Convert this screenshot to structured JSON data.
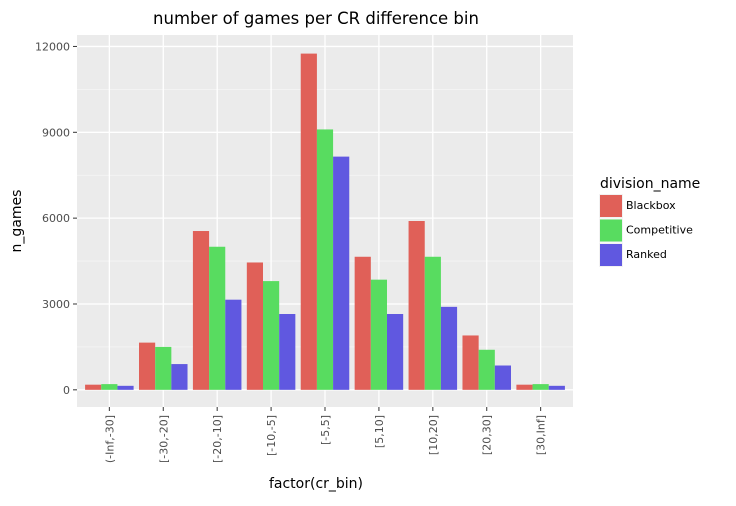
{
  "chart_data": {
    "type": "bar",
    "title": "number of games per CR difference bin",
    "xlabel": "factor(cr_bin)",
    "ylabel": "n_games",
    "categories": [
      "(-Inf,-30]",
      "[-30,-20]",
      "[-20,-10]",
      "[-10,-5]",
      "[-5,5]",
      "[5,10]",
      "[10,20]",
      "[20,30]",
      "[30,Inf]"
    ],
    "ylim": [
      -600,
      12400
    ],
    "yticks": [
      0,
      3000,
      6000,
      9000,
      12000
    ],
    "ytick_labels": [
      "0",
      "3000",
      "6000",
      "9000",
      "12000"
    ],
    "grid": true,
    "legend_title": "division_name",
    "legend_position": "right",
    "series": [
      {
        "name": "Blackbox",
        "color": "#e06058",
        "values": [
          180,
          1650,
          5550,
          4450,
          11750,
          4650,
          5900,
          1900,
          180
        ]
      },
      {
        "name": "Competitive",
        "color": "#58dc60",
        "values": [
          200,
          1500,
          5000,
          3800,
          9100,
          3850,
          4650,
          1400,
          200
        ]
      },
      {
        "name": "Ranked",
        "color": "#6058e0",
        "values": [
          140,
          900,
          3150,
          2650,
          8150,
          2650,
          2900,
          850,
          140
        ]
      }
    ]
  }
}
